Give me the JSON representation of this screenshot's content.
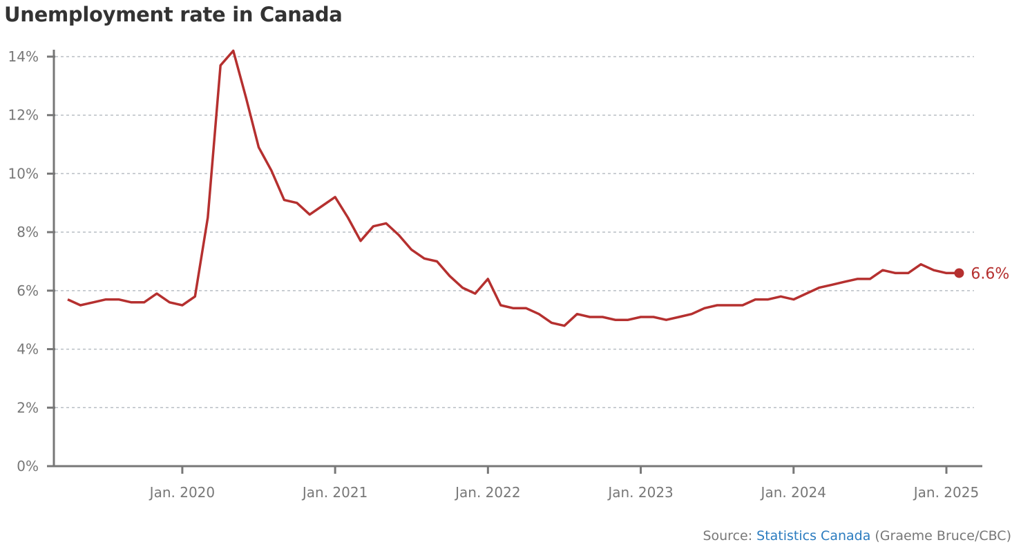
{
  "title": "Unemployment rate in Canada",
  "source": {
    "prefix": "Source: ",
    "link": "Statistics Canada",
    "suffix": " (Graeme Bruce/CBC)"
  },
  "colors": {
    "line": "#b5302f",
    "axis": "#777777",
    "grid": "#b8bec4"
  },
  "chart_data": {
    "type": "line",
    "title": "Unemployment rate in Canada",
    "xlabel": "",
    "ylabel": "",
    "start_month": "2019-04",
    "end_month": "2025-02",
    "ylim": [
      0,
      14
    ],
    "yticks": [
      0,
      2,
      4,
      6,
      8,
      10,
      12,
      14
    ],
    "ytick_labels": [
      "0%",
      "2%",
      "4%",
      "6%",
      "8%",
      "10%",
      "12%",
      "14%"
    ],
    "xtick_labels": [
      "Jan. 2020",
      "Jan. 2021",
      "Jan. 2022",
      "Jan. 2023",
      "Jan. 2024",
      "Jan. 2025"
    ],
    "xtick_month_index": [
      9,
      21,
      33,
      45,
      57,
      69
    ],
    "grid": true,
    "series": [
      {
        "name": "Unemployment rate",
        "values": [
          5.7,
          5.5,
          5.6,
          5.7,
          5.7,
          5.6,
          5.6,
          5.9,
          5.6,
          5.5,
          5.8,
          8.5,
          13.7,
          14.2,
          12.6,
          10.9,
          10.1,
          9.1,
          9.0,
          8.6,
          8.9,
          9.2,
          8.5,
          7.7,
          8.2,
          8.3,
          7.9,
          7.4,
          7.1,
          7.0,
          6.5,
          6.1,
          5.9,
          6.4,
          5.5,
          5.4,
          5.4,
          5.2,
          4.9,
          4.8,
          5.2,
          5.1,
          5.1,
          5.0,
          5.0,
          5.1,
          5.1,
          5.0,
          5.1,
          5.2,
          5.4,
          5.5,
          5.5,
          5.5,
          5.7,
          5.7,
          5.8,
          5.7,
          5.9,
          6.1,
          6.2,
          6.3,
          6.4,
          6.4,
          6.7,
          6.6,
          6.6,
          6.9,
          6.7,
          6.6,
          6.6
        ]
      }
    ],
    "end_label": "6.6%"
  }
}
